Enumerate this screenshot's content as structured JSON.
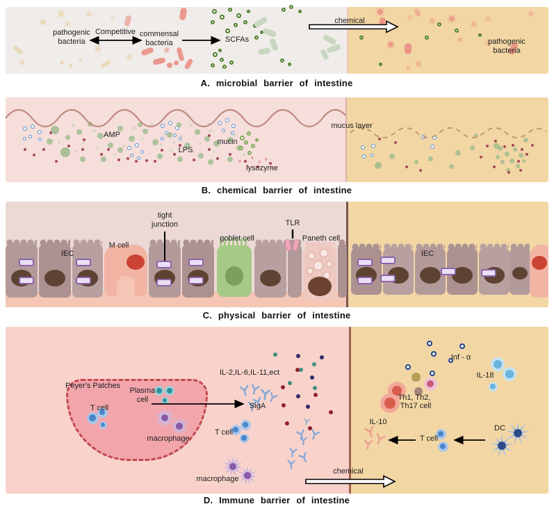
{
  "figure": {
    "captions": {
      "a": "A. microbial barrier of intestine",
      "b": "B. chemical barrier of intestine",
      "c": "C. physical barrier of intestine",
      "d": "D. Immune barrier of intestine"
    },
    "panel_a": {
      "labels": {
        "pathogenic_left": "pathogenic\nbacteria",
        "competitive": "Competitive",
        "commensal": "commensal\nbacteria",
        "scfas": "SCFAs",
        "chemical": "chemical",
        "pathogenic_right": "pathogenic\nbacteria"
      }
    },
    "panel_b": {
      "labels": {
        "amp": "AMP",
        "lps": "LPS",
        "mucin": "mucin",
        "lysozyme": "lysozyme",
        "mucus_layer": "mucus layer"
      }
    },
    "panel_c": {
      "labels": {
        "iec_left": "IEC",
        "m_cell": "M cell",
        "tight_junction": "tight\njunction",
        "goblet_cell": "goblet cell",
        "tlr": "TLR",
        "paneth_cell": "Paneth cell",
        "iec_right": "IEC"
      }
    },
    "panel_d": {
      "labels": {
        "peyers_patches": "Peyer's Patches",
        "plasma_cell": "Plasma\ncell",
        "t_cell_patch": "T cell",
        "macrophage_patch": "macrophage",
        "siga": "SigA",
        "cytokines": "IL-2,IL-6,IL-11,ect",
        "t_cell_mid": "T cell",
        "macrophage_mid": "macrophage",
        "chemical": "chemical",
        "inf_alpha": "Inf - α",
        "il18": "IL-18",
        "th1_th2": "Th1, Th2,",
        "th17": "Th17 cell",
        "il10": "IL-10",
        "t_cell_right": "T cell",
        "dc": "DC"
      }
    },
    "colors": {
      "a_left_bg": "#f0ece9",
      "orange_bg": "#f2d6a4",
      "b_left_bg": "#f6dedb",
      "c_left_bg": "#ecd9d6",
      "d_left_bg": "#f9d3cb",
      "strip_salmon": "#f5c6b5",
      "patch_fill": "#f2a6ab",
      "patch_border": "#c2494f",
      "div_a": "#e9c9bc",
      "div_b": "#ddb2a8",
      "div_c": "#7a564c",
      "div_d": "#a3604f",
      "tan": "#e8d6ae",
      "salmon": "#ea8f84",
      "greenring": "#4f7f2a",
      "lightgreenrod": "#c8d6bf",
      "bluering": "#5b8dd0",
      "greendot": "#9cba8c",
      "palegreen": "#bccfae",
      "mucingreen": "#7fa855",
      "redsmall": "#a84a56",
      "pinksmall": "#e8a8a8",
      "teal_sc": "#3f8f7f",
      "crimson_sc": "#8f2030",
      "navy_sc": "#342a6a",
      "navyring": "#1f3f8f",
      "tcell_o": "#aac6e8",
      "tcell_i": "#4a86c8",
      "plasma_o": "#9fd0d4",
      "plasma_i": "#2f8f9f",
      "lblue_o": "#c5e3f2",
      "lblue_i": "#6ab4dc",
      "red_o": "#f2a898",
      "red_i": "#d85c4c",
      "pinkc_o": "#f0c4d4",
      "pinkc_i": "#c85a78",
      "olive": "#b5a05a",
      "mauve": "#a5857a",
      "mac_o": "#cfbade",
      "mac_i": "#8a5aa8",
      "dc_o": "#a8c0e0",
      "dc_i": "#2a4a8a",
      "yblue": "#84a8d8",
      "ypink": "#e8a090",
      "mucus_line": "#c08a80",
      "wave_dashed": "#bb9468"
    }
  }
}
